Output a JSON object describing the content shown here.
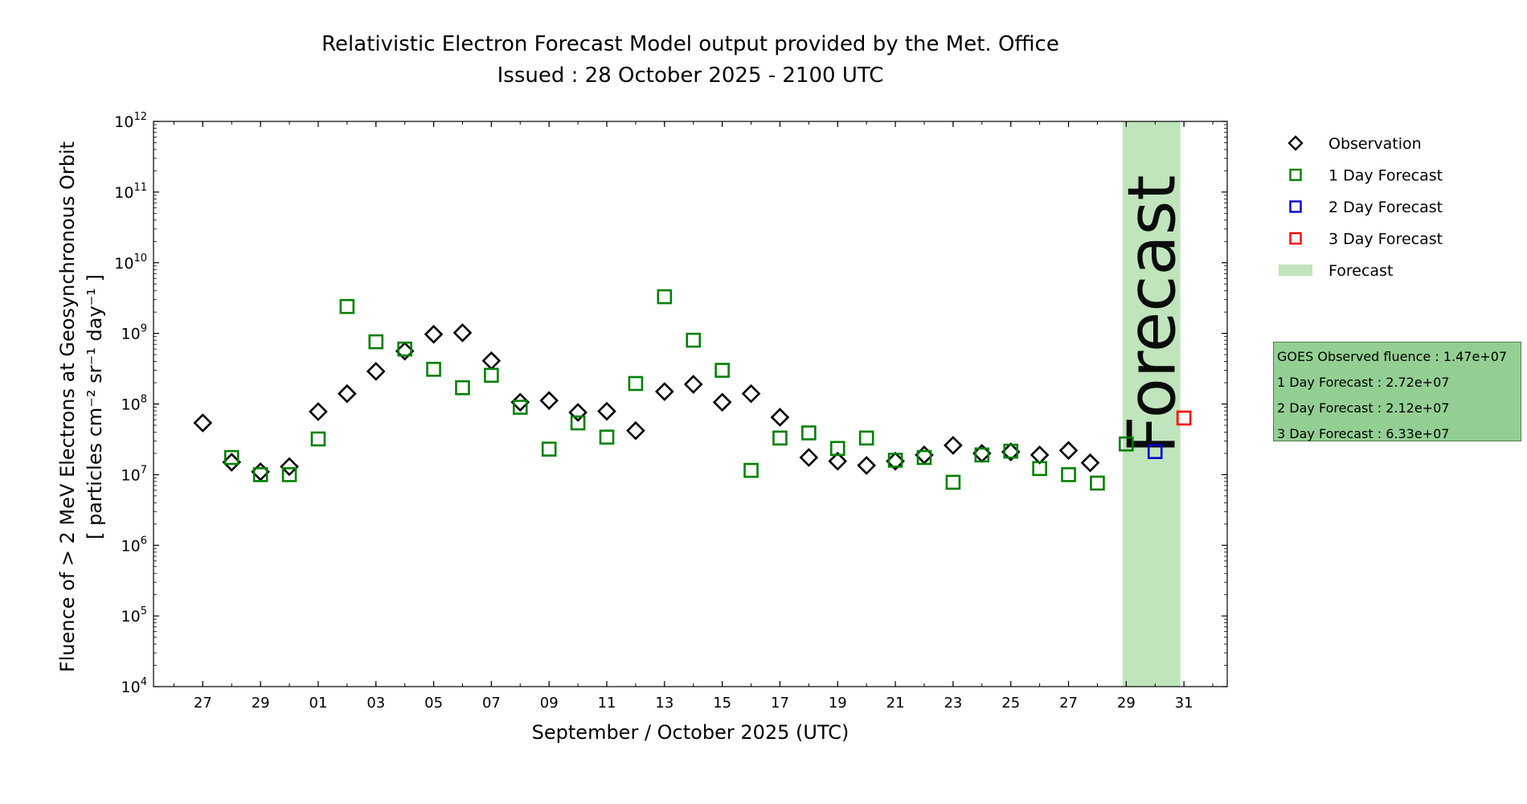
{
  "chart_data": {
    "type": "scatter",
    "title": "Relativistic Electron Forecast Model output provided by the Met. Office",
    "subtitle": "Issued : 28 October 2025 - 2100 UTC",
    "xlabel": "September / October 2025 (UTC)",
    "ylabel_line1": "Fluence of > 2 MeV Electrons at Geosynchronous Orbit",
    "ylabel_line2": "[ particles cm⁻² sr⁻¹ day⁻¹ ]",
    "y_scale": "log",
    "ylim": [
      "10^4",
      "10^12"
    ],
    "xlim": [
      "2025-09-25T07:00",
      "2025-11-01T12:00"
    ],
    "x_tick_dates": [
      "2025-09-27",
      "2025-09-29",
      "2025-10-01",
      "2025-10-03",
      "2025-10-05",
      "2025-10-07",
      "2025-10-09",
      "2025-10-11",
      "2025-10-13",
      "2025-10-15",
      "2025-10-17",
      "2025-10-19",
      "2025-10-21",
      "2025-10-23",
      "2025-10-25",
      "2025-10-27",
      "2025-10-29",
      "2025-10-31"
    ],
    "x_tick_labels": [
      "27",
      "29",
      "01",
      "03",
      "05",
      "07",
      "09",
      "11",
      "13",
      "15",
      "17",
      "19",
      "21",
      "23",
      "25",
      "27",
      "29",
      "31"
    ],
    "y_tick_labels": [
      {
        "base": "10",
        "exp": "4"
      },
      {
        "base": "10",
        "exp": "5"
      },
      {
        "base": "10",
        "exp": "6"
      },
      {
        "base": "10",
        "exp": "7"
      },
      {
        "base": "10",
        "exp": "8"
      },
      {
        "base": "10",
        "exp": "9"
      },
      {
        "base": "10",
        "exp": "10"
      },
      {
        "base": "10",
        "exp": "11"
      },
      {
        "base": "10",
        "exp": "12"
      }
    ],
    "forecast_band": {
      "start": "2025-10-28T21:00",
      "end": "2025-10-30T21:00",
      "label": "Forecast",
      "color": "#c0e4bc"
    },
    "legend_position": "right",
    "legend": [
      {
        "label": "Observation",
        "marker": "diamond",
        "color": "#000000"
      },
      {
        "label": "1 Day Forecast",
        "marker": "square",
        "color": "#008000"
      },
      {
        "label": "2 Day Forecast",
        "marker": "square",
        "color": "#0000cc"
      },
      {
        "label": "3 Day Forecast",
        "marker": "square",
        "color": "#ff0000"
      },
      {
        "label": "Forecast",
        "marker": "band",
        "color": "#c0e4bc"
      }
    ],
    "series": [
      {
        "name": "Observation",
        "marker": "diamond",
        "color": "#000000",
        "points": [
          [
            "2025-09-27T00:00",
            54000000.0
          ],
          [
            "2025-09-28T00:00",
            15000000.0
          ],
          [
            "2025-09-29T00:00",
            11000000.0
          ],
          [
            "2025-09-30T00:00",
            13000000.0
          ],
          [
            "2025-10-01T00:00",
            78000000.0
          ],
          [
            "2025-10-02T00:00",
            140000000.0
          ],
          [
            "2025-10-03T00:00",
            290000000.0
          ],
          [
            "2025-10-04T00:00",
            560000000.0
          ],
          [
            "2025-10-05T00:00",
            970000000.0
          ],
          [
            "2025-10-06T00:00",
            1020000000.0
          ],
          [
            "2025-10-07T00:00",
            410000000.0
          ],
          [
            "2025-10-08T00:00",
            106000000.0
          ],
          [
            "2025-10-09T00:00",
            112000000.0
          ],
          [
            "2025-10-10T00:00",
            76000000.0
          ],
          [
            "2025-10-11T00:00",
            79000000.0
          ],
          [
            "2025-10-12T00:00",
            42000000.0
          ],
          [
            "2025-10-13T00:00",
            150000000.0
          ],
          [
            "2025-10-14T00:00",
            190000000.0
          ],
          [
            "2025-10-15T00:00",
            106000000.0
          ],
          [
            "2025-10-16T00:00",
            140000000.0
          ],
          [
            "2025-10-17T00:00",
            65000000.0
          ],
          [
            "2025-10-18T00:00",
            17500000.0
          ],
          [
            "2025-10-19T00:00",
            15500000.0
          ],
          [
            "2025-10-20T00:00",
            13500000.0
          ],
          [
            "2025-10-21T00:00",
            15500000.0
          ],
          [
            "2025-10-22T00:00",
            19000000.0
          ],
          [
            "2025-10-23T00:00",
            26000000.0
          ],
          [
            "2025-10-24T00:00",
            20000000.0
          ],
          [
            "2025-10-25T00:00",
            21000000.0
          ],
          [
            "2025-10-26T00:00",
            19000000.0
          ],
          [
            "2025-10-27T00:00",
            22000000.0
          ],
          [
            "2025-10-27T18:00",
            14700000.0
          ]
        ]
      },
      {
        "name": "1 Day Forecast",
        "marker": "square",
        "color": "#008000",
        "points": [
          [
            "2025-09-28T00:00",
            17500000.0
          ],
          [
            "2025-09-29T00:00",
            10000000.0
          ],
          [
            "2025-09-30T00:00",
            10000000.0
          ],
          [
            "2025-10-01T00:00",
            32000000.0
          ],
          [
            "2025-10-02T00:00",
            2400000000.0
          ],
          [
            "2025-10-03T00:00",
            760000000.0
          ],
          [
            "2025-10-04T00:00",
            600000000.0
          ],
          [
            "2025-10-05T00:00",
            310000000.0
          ],
          [
            "2025-10-06T00:00",
            170000000.0
          ],
          [
            "2025-10-07T00:00",
            255000000.0
          ],
          [
            "2025-10-08T00:00",
            90000000.0
          ],
          [
            "2025-10-09T00:00",
            23000000.0
          ],
          [
            "2025-10-10T00:00",
            54000000.0
          ],
          [
            "2025-10-11T00:00",
            34000000.0
          ],
          [
            "2025-10-12T00:00",
            195000000.0
          ],
          [
            "2025-10-13T00:00",
            3300000000.0
          ],
          [
            "2025-10-14T00:00",
            800000000.0
          ],
          [
            "2025-10-15T00:00",
            300000000.0
          ],
          [
            "2025-10-16T00:00",
            11500000.0
          ],
          [
            "2025-10-17T00:00",
            33000000.0
          ],
          [
            "2025-10-18T00:00",
            39000000.0
          ],
          [
            "2025-10-19T00:00",
            23500000.0
          ],
          [
            "2025-10-20T00:00",
            33000000.0
          ],
          [
            "2025-10-21T00:00",
            16000000.0
          ],
          [
            "2025-10-22T00:00",
            17500000.0
          ],
          [
            "2025-10-23T00:00",
            7800000.0
          ],
          [
            "2025-10-24T00:00",
            19000000.0
          ],
          [
            "2025-10-25T00:00",
            21500000.0
          ],
          [
            "2025-10-26T00:00",
            12200000.0
          ],
          [
            "2025-10-27T00:00",
            10000000.0
          ],
          [
            "2025-10-28T00:00",
            7600000.0
          ],
          [
            "2025-10-29T00:00",
            27200000.0
          ]
        ]
      },
      {
        "name": "2 Day Forecast",
        "marker": "square",
        "color": "#0000cc",
        "points": [
          [
            "2025-10-30T00:00",
            21200000.0
          ]
        ]
      },
      {
        "name": "3 Day Forecast",
        "marker": "square",
        "color": "#ff0000",
        "points": [
          [
            "2025-10-31T00:00",
            63300000.0
          ]
        ]
      }
    ],
    "info_box": {
      "color": "#93cf93",
      "lines": [
        "GOES Observed fluence : 1.47e+07",
        "1 Day Forecast : 2.72e+07",
        "2 Day Forecast : 2.12e+07",
        "3 Day Forecast : 6.33e+07"
      ]
    }
  }
}
